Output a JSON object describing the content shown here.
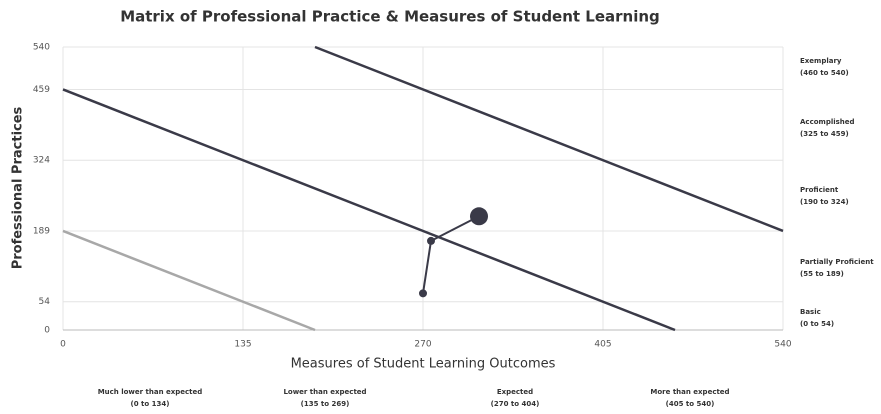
{
  "chart_data": {
    "type": "line",
    "title": "Matrix of Professional Practice & Measures of Student Learning",
    "xlabel": "Measures of Student Learning Outcomes",
    "ylabel": "Professional Practices",
    "xlim": [
      0,
      540
    ],
    "ylim": [
      0,
      540
    ],
    "xticks": [
      0,
      135,
      270,
      405,
      540
    ],
    "yticks": [
      0,
      54,
      189,
      324,
      459,
      540
    ],
    "grid": true,
    "series": [
      {
        "color": "#a8a8a8",
        "x": [
          0,
          189
        ],
        "values": [
          189,
          0
        ]
      },
      {
        "color": "#3a3a48",
        "x": [
          0,
          459
        ],
        "values": [
          459,
          0
        ]
      },
      {
        "color": "#3a3a48",
        "x": [
          189,
          540
        ],
        "values": [
          540,
          189
        ]
      },
      {
        "color": "#3a3a48",
        "x": [
          270,
          276,
          312
        ],
        "values": [
          70,
          170,
          217
        ],
        "markers": true
      }
    ],
    "y_bands": [
      {
        "name": "Exemplary",
        "range": "(460 to 540)",
        "color": "#333"
      },
      {
        "name": "Accomplished",
        "range": "(325 to 459)",
        "color": "#333"
      },
      {
        "name": "Proficient",
        "range": "(190 to 324)",
        "color": "#333"
      },
      {
        "name": "Partially Proficient",
        "range": "(55 to 189)",
        "color": "#999"
      },
      {
        "name": "Basic",
        "range": "(0 to 54)",
        "color": "#333"
      }
    ],
    "x_bands": [
      {
        "name": "Much lower than expected",
        "range": "(0 to 134)",
        "color": "#333"
      },
      {
        "name": "Lower than expected",
        "range": "(135 to 269)",
        "color": "#999"
      },
      {
        "name": "Expected",
        "range": "(270 to 404)",
        "color": "#333"
      },
      {
        "name": "More than expected",
        "range": "(405 to 540)",
        "color": "#333"
      }
    ]
  }
}
